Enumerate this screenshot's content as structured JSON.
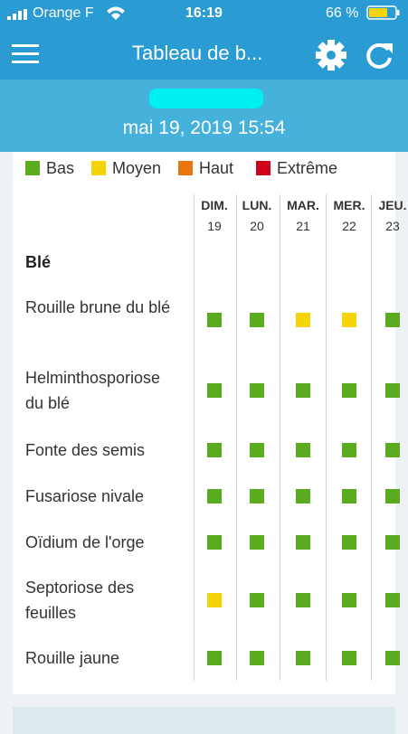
{
  "status_bar": {
    "carrier": "Orange F",
    "time": "16:19",
    "battery": "66 %"
  },
  "header": {
    "title": "Tableau de b..."
  },
  "subheader": {
    "date": "mai 19, 2019 15:54"
  },
  "legend": [
    {
      "name": "Bas",
      "color": "#5aab1f"
    },
    {
      "name": "Moyen",
      "color": "#f5d50a"
    },
    {
      "name": "Haut",
      "color": "#e8750e"
    },
    {
      "name": "Extrême",
      "color": "#d0021b"
    }
  ],
  "table": {
    "days": [
      {
        "day": "DIM.",
        "date": "19"
      },
      {
        "day": "LUN.",
        "date": "20"
      },
      {
        "day": "MAR.",
        "date": "21"
      },
      {
        "day": "MER.",
        "date": "22"
      },
      {
        "day": "JEU.",
        "date": "23"
      }
    ],
    "section": "Blé",
    "rows": [
      {
        "label": "Rouille brune du blé",
        "levels": [
          "Bas",
          "Bas",
          "Moyen",
          "Moyen",
          "Bas"
        ]
      },
      {
        "label": "Helminthosporiose du blé",
        "levels": [
          "Bas",
          "Bas",
          "Bas",
          "Bas",
          "Bas"
        ]
      },
      {
        "label": "Fonte des semis",
        "levels": [
          "Bas",
          "Bas",
          "Bas",
          "Bas",
          "Bas"
        ]
      },
      {
        "label": "Fusariose nivale",
        "levels": [
          "Bas",
          "Bas",
          "Bas",
          "Bas",
          "Bas"
        ]
      },
      {
        "label": "Oïdium de l'orge",
        "levels": [
          "Bas",
          "Bas",
          "Bas",
          "Bas",
          "Bas"
        ]
      },
      {
        "label": "Septoriose des feuilles",
        "levels": [
          "Moyen",
          "Bas",
          "Bas",
          "Bas",
          "Bas"
        ]
      },
      {
        "label": "Rouille jaune",
        "levels": [
          "Bas",
          "Bas",
          "Bas",
          "Bas",
          "Bas"
        ]
      }
    ]
  }
}
